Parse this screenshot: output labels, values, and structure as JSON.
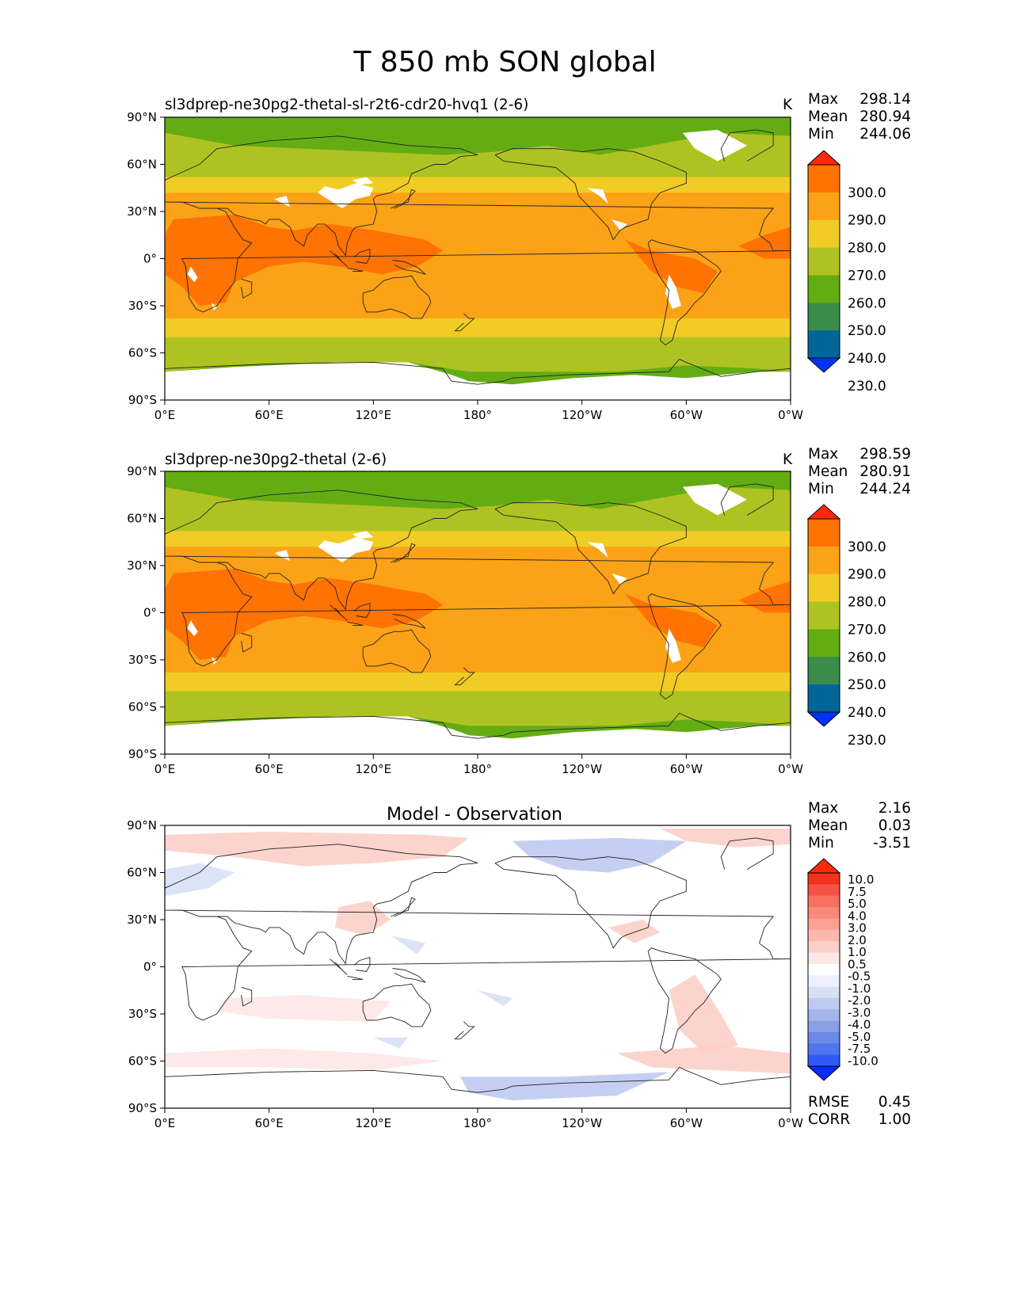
{
  "figure": {
    "title": "T 850 mb SON global"
  },
  "panels": [
    {
      "title_left": "sl3dprep-ne30pg2-thetal-sl-r2t6-cdr20-hvq1 (2-6)",
      "units": "K",
      "stats": [
        {
          "label": "Max",
          "value": "298.14"
        },
        {
          "label": "Mean",
          "value": "280.94"
        },
        {
          "label": "Min",
          "value": "244.06"
        }
      ]
    },
    {
      "title_left": "sl3dprep-ne30pg2-thetal (2-6)",
      "units": "K",
      "stats": [
        {
          "label": "Max",
          "value": "298.59"
        },
        {
          "label": "Mean",
          "value": "280.91"
        },
        {
          "label": "Min",
          "value": "244.24"
        }
      ]
    },
    {
      "title_center": "Model - Observation",
      "stats": [
        {
          "label": "Max",
          "value": "2.16"
        },
        {
          "label": "Mean",
          "value": "0.03"
        },
        {
          "label": "Min",
          "value": "-3.51"
        }
      ],
      "metrics": [
        {
          "label": "RMSE",
          "value": "0.45"
        },
        {
          "label": "CORR",
          "value": "1.00"
        }
      ]
    }
  ],
  "axes": {
    "lat_ticks": [
      "90°N",
      "60°N",
      "30°N",
      "0°",
      "30°S",
      "60°S",
      "90°S"
    ],
    "lon_ticks": [
      "0°E",
      "60°E",
      "120°E",
      "180°",
      "120°W",
      "60°W",
      "0°W"
    ]
  },
  "colorbars": {
    "field": {
      "colors": [
        "#0033ff",
        "#006699",
        "#3a8c4a",
        "#63ad13",
        "#aec321",
        "#f0cc25",
        "#fca217",
        "#ff7204",
        "#ff2a0a"
      ],
      "labels": [
        "230.0",
        "240.0",
        "250.0",
        "260.0",
        "270.0",
        "280.0",
        "290.0",
        "300.0"
      ]
    },
    "diff": {
      "colors": [
        "#0a2bff",
        "#2f5af7",
        "#5075ee",
        "#6d8ae8",
        "#899fe6",
        "#a4b5ea",
        "#bfcaf0",
        "#d9e0f6",
        "#eef1fb",
        "#ffffff",
        "#fde7e4",
        "#fccfc9",
        "#fbb8ae",
        "#faa194",
        "#f9897a",
        "#f76f5f",
        "#f55245",
        "#f1321e",
        "#ff2a0a"
      ],
      "labels": [
        "-10.0",
        "-7.5",
        "-5.0",
        "-4.0",
        "-3.0",
        "-2.0",
        "-1.0",
        "-0.5",
        "0.5",
        "1.0",
        "2.0",
        "3.0",
        "4.0",
        "5.0",
        "7.5",
        "10.0"
      ]
    }
  },
  "map_style": {
    "missing_color": "#ffffff",
    "coast_color": "#222222"
  }
}
